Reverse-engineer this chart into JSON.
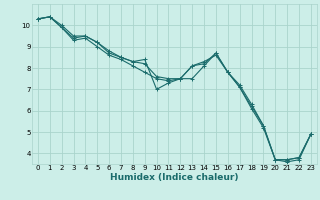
{
  "title": "",
  "xlabel": "Humidex (Indice chaleur)",
  "ylabel": "",
  "xlim": [
    -0.5,
    23.5
  ],
  "ylim": [
    3.5,
    11.0
  ],
  "yticks": [
    4,
    5,
    6,
    7,
    8,
    9,
    10
  ],
  "xticks": [
    0,
    1,
    2,
    3,
    4,
    5,
    6,
    7,
    8,
    9,
    10,
    11,
    12,
    13,
    14,
    15,
    16,
    17,
    18,
    19,
    20,
    21,
    22,
    23
  ],
  "bg_color": "#cceee8",
  "grid_color": "#aad4cc",
  "line_color": "#1a6b6b",
  "line1_x": [
    0,
    1,
    2,
    3,
    4,
    5,
    6,
    7,
    8,
    9,
    10,
    11,
    12,
    13,
    14,
    15,
    16,
    17,
    18,
    19,
    20,
    21,
    22,
    23
  ],
  "line1_y": [
    10.3,
    10.4,
    9.9,
    9.4,
    9.5,
    9.2,
    8.8,
    8.5,
    8.3,
    8.2,
    7.6,
    7.5,
    7.5,
    8.1,
    8.2,
    8.7,
    7.8,
    7.2,
    6.3,
    5.3,
    3.7,
    3.7,
    3.8,
    4.9
  ],
  "line2_x": [
    0,
    1,
    2,
    3,
    4,
    5,
    6,
    7,
    8,
    9,
    10,
    11,
    12,
    13,
    14,
    15,
    16,
    17,
    18,
    19,
    20,
    21,
    22,
    23
  ],
  "line2_y": [
    10.3,
    10.4,
    10.0,
    9.5,
    9.5,
    9.2,
    8.7,
    8.5,
    8.3,
    8.4,
    7.0,
    7.3,
    7.5,
    8.1,
    8.3,
    8.6,
    7.8,
    7.1,
    6.2,
    5.3,
    3.7,
    3.7,
    3.8,
    4.9
  ],
  "line3_x": [
    0,
    1,
    2,
    3,
    4,
    5,
    6,
    7,
    8,
    9,
    10,
    11,
    12,
    13,
    14,
    15,
    16,
    17,
    18,
    19,
    20,
    21,
    22,
    23
  ],
  "line3_y": [
    10.3,
    10.4,
    9.9,
    9.3,
    9.4,
    9.0,
    8.6,
    8.4,
    8.1,
    7.8,
    7.5,
    7.4,
    7.5,
    7.5,
    8.1,
    8.7,
    7.8,
    7.1,
    6.1,
    5.2,
    3.7,
    3.6,
    3.7,
    4.9
  ],
  "xlabel_color": "#1a6b6b",
  "xlabel_fontsize": 6.5,
  "tick_fontsize": 5,
  "lw": 0.8,
  "ms": 2.5
}
